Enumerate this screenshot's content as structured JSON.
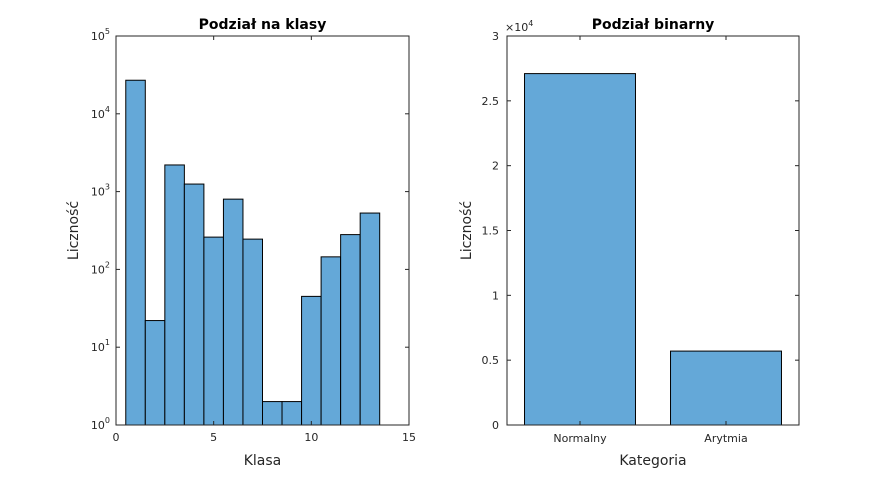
{
  "chart_data": [
    {
      "type": "bar",
      "title": "Podział na klasy",
      "xlabel": "Klasa",
      "ylabel": "Liczność",
      "yscale": "log",
      "ylim": [
        1,
        100000
      ],
      "xlim": [
        0,
        15
      ],
      "x_ticks": [
        "0",
        "5",
        "10",
        "15"
      ],
      "y_ticks": [
        {
          "base": "10",
          "exp": "0"
        },
        {
          "base": "10",
          "exp": "1"
        },
        {
          "base": "10",
          "exp": "2"
        },
        {
          "base": "10",
          "exp": "3"
        },
        {
          "base": "10",
          "exp": "4"
        },
        {
          "base": "10",
          "exp": "5"
        }
      ],
      "bin_width": 1,
      "x": [
        1,
        2,
        3,
        4,
        5,
        6,
        7,
        8,
        9,
        10,
        11,
        12,
        13
      ],
      "values": [
        27000,
        22,
        2200,
        1250,
        260,
        800,
        245,
        2,
        2,
        45,
        145,
        280,
        530
      ],
      "color": "#64a8d8"
    },
    {
      "type": "bar",
      "title": "Podział binarny",
      "xlabel": "Kategoria",
      "ylabel": "Liczność",
      "ylim": [
        0,
        30000
      ],
      "categories": [
        "Normalny",
        "Arytmia"
      ],
      "values": [
        27100,
        5700
      ],
      "y_ticks": [
        "0",
        "0.5",
        "1",
        "1.5",
        "2",
        "2.5",
        "3"
      ],
      "multiplier": {
        "base": "×10",
        "exp": "4"
      },
      "color": "#64a8d8"
    }
  ]
}
